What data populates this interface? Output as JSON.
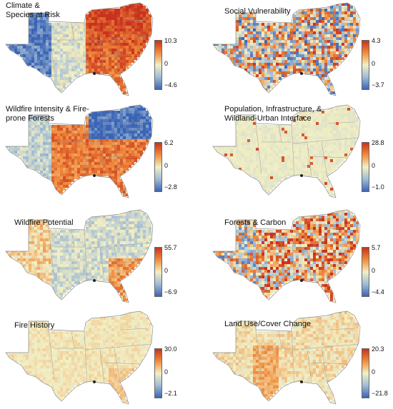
{
  "panels": [
    {
      "title_lines": [
        "Climate &",
        "Species at Risk"
      ],
      "max": "10.3",
      "mid": "0",
      "min": "−4.6",
      "pattern": "climate"
    },
    {
      "title_lines": [
        "Social Vulnerability"
      ],
      "max": "4.3",
      "mid": "0",
      "min": "−3.7",
      "pattern": "social"
    },
    {
      "title_lines": [
        "Wildfire Intensity & Fire-",
        "prone Forests"
      ],
      "max": "6.2",
      "mid": "0",
      "min": "−2.8",
      "pattern": "wildfire_intensity"
    },
    {
      "title_lines": [
        "Population, Infrastructure, &",
        "Wildland-Urban Interface"
      ],
      "max": "28.8",
      "mid": "0",
      "min": "−1.0",
      "pattern": "population"
    },
    {
      "title_lines": [
        "Wildfire Potential"
      ],
      "max": "55.7",
      "mid": "0",
      "min": "−6.9",
      "pattern": "potential"
    },
    {
      "title_lines": [
        "Forests & Carbon"
      ],
      "max": "5.7",
      "mid": "0",
      "min": "−4.4",
      "pattern": "forests"
    },
    {
      "title_lines": [
        "Fire History"
      ],
      "max": "30.0",
      "mid": "0",
      "min": "−2.1",
      "pattern": "history"
    },
    {
      "title_lines": [
        "Land Use/Cover Change"
      ],
      "max": "20.3",
      "mid": "0",
      "min": "−21.8",
      "pattern": "landuse"
    }
  ],
  "colors": {
    "high": "#c8321e",
    "mid_high": "#f08c3c",
    "neutral": "#f2efc4",
    "mid_low": "#a0bcd6",
    "low": "#3c64b4",
    "outline": "#8a8a8a"
  }
}
